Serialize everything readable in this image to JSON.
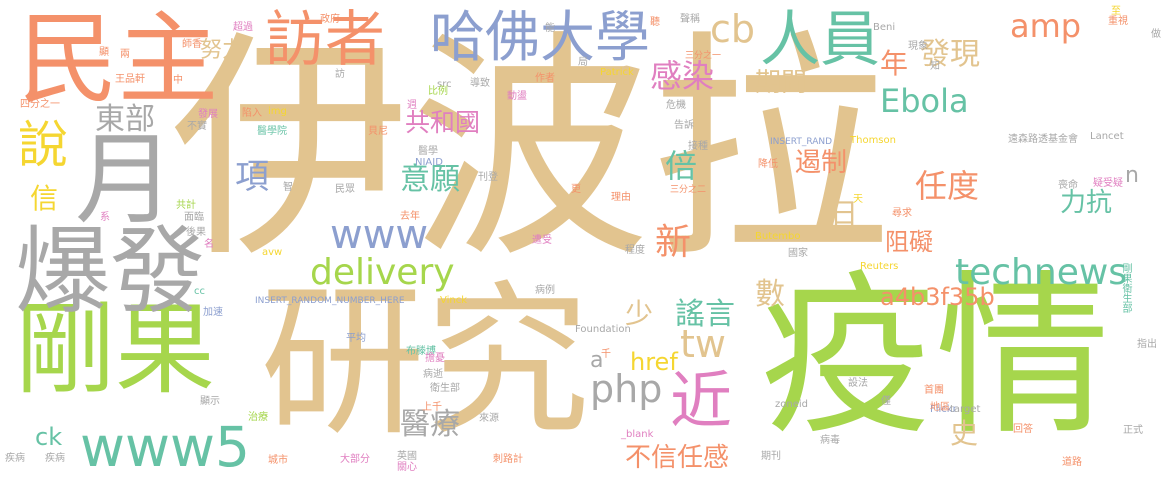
{
  "title": "",
  "colors": {
    "tan": "#dcc090",
    "pink": "#e07fc0",
    "green": "#a6d64c",
    "salmon": "#f4916a",
    "gray": "#a8a8a8",
    "blue": "#8c9fcf",
    "teal": "#66c2a5",
    "yellow": "#f5d631"
  },
  "words": [
    {
      "text": "伊波拉",
      "color": "#e2c48f"
    },
    {
      "text": "疫情",
      "color": "#a6d64c"
    },
    {
      "text": "研究",
      "color": "#e2c48f"
    },
    {
      "text": "民主",
      "color": "#f4916a"
    },
    {
      "text": "剛果",
      "color": "#a6d64c"
    },
    {
      "text": "爆發",
      "color": "#a8a8a8"
    },
    {
      "text": "月",
      "color": "#a8a8a8"
    },
    {
      "text": "訪者",
      "color": "#f4916a"
    },
    {
      "text": "哈佛大學",
      "color": "#8c9fcf"
    },
    {
      "text": "人員",
      "color": "#66c2a5"
    },
    {
      "text": "說",
      "color": "#f5d631"
    },
    {
      "text": "www5",
      "color": "#66c2a5"
    },
    {
      "text": "technews",
      "color": "#66c2a5"
    },
    {
      "text": "delivery",
      "color": "#a6d64c"
    },
    {
      "text": "www",
      "color": "#8c9fcf"
    },
    {
      "text": "近",
      "color": "#e07fc0"
    },
    {
      "text": "cb",
      "color": "#e2c48f"
    },
    {
      "text": "amp",
      "color": "#f4916a"
    },
    {
      "text": "發現",
      "color": "#e2c48f"
    },
    {
      "text": "感染",
      "color": "#e07fc0"
    },
    {
      "text": "期間",
      "color": "#e2c48f"
    },
    {
      "text": "東部",
      "color": "#a8a8a8"
    },
    {
      "text": "共和國",
      "color": "#e07fc0"
    },
    {
      "text": "意願",
      "color": "#66c2a5"
    },
    {
      "text": "Ebola",
      "color": "#66c2a5"
    },
    {
      "text": "任度",
      "color": "#f4916a"
    },
    {
      "text": "倍",
      "color": "#66c2a5"
    },
    {
      "text": "php",
      "color": "#a8a8a8"
    },
    {
      "text": "tw",
      "color": "#e2c48f"
    },
    {
      "text": "謠言",
      "color": "#66c2a5"
    },
    {
      "text": "醫療",
      "color": "#a8a8a8"
    },
    {
      "text": "不信任感",
      "color": "#f4916a"
    },
    {
      "text": "a4b3f35b",
      "color": "#f4916a"
    },
    {
      "text": "遏制",
      "color": "#f4916a"
    },
    {
      "text": "項",
      "color": "#8c9fcf"
    },
    {
      "text": "信",
      "color": "#f5d631"
    },
    {
      "text": "努力",
      "color": "#e2c48f"
    },
    {
      "text": "年",
      "color": "#f4916a"
    },
    {
      "text": "新",
      "color": "#f4916a"
    },
    {
      "text": "少",
      "color": "#e2c48f"
    },
    {
      "text": "數",
      "color": "#e2c48f"
    },
    {
      "text": "力抗",
      "color": "#66c2a5"
    },
    {
      "text": "阻礙",
      "color": "#f4916a"
    },
    {
      "text": "日",
      "color": "#e2c48f"
    },
    {
      "text": "n",
      "color": "#a8a8a8"
    },
    {
      "text": "href",
      "color": "#f5d631"
    },
    {
      "text": "史",
      "color": "#e2c48f"
    },
    {
      "text": "ck",
      "color": "#66c2a5"
    },
    {
      "text": "a",
      "color": "#a8a8a8"
    },
    {
      "text": "INSERT_RANDOM_NUMBER_HERE",
      "color": "#8c9fcf"
    },
    {
      "text": "INSERT_RAND",
      "color": "#8c9fcf"
    },
    {
      "text": "遠森路透基金會",
      "color": "#a8a8a8"
    },
    {
      "text": "Lancet",
      "color": "#a8a8a8"
    },
    {
      "text": "Thomson",
      "color": "#f5d631"
    },
    {
      "text": "Patrick",
      "color": "#f5d631"
    },
    {
      "text": "Foundation",
      "color": "#a8a8a8"
    },
    {
      "text": "Vinck",
      "color": "#f5d631"
    },
    {
      "text": "Butembo",
      "color": "#f5d631"
    },
    {
      "text": "Reuters",
      "color": "#f5d631"
    },
    {
      "text": "Flickr",
      "color": "#8c9fcf"
    },
    {
      "text": "zoneid",
      "color": "#a8a8a8"
    },
    {
      "text": "target",
      "color": "#a8a8a8"
    },
    {
      "text": "_blank",
      "color": "#e07fc0"
    },
    {
      "text": "NIAID",
      "color": "#8c9fcf"
    },
    {
      "text": "Beni",
      "color": "#a8a8a8"
    },
    {
      "text": "src",
      "color": "#a8a8a8"
    },
    {
      "text": "img",
      "color": "#f5d631"
    },
    {
      "text": "avw",
      "color": "#f5d631"
    },
    {
      "text": "cc",
      "color": "#66c2a5"
    },
    {
      "text": "王品軒",
      "color": "#f4916a"
    },
    {
      "text": "四分之一",
      "color": "#f4916a"
    },
    {
      "text": "三分之二",
      "color": "#f4916a"
    },
    {
      "text": "三分之一",
      "color": "#f4916a"
    },
    {
      "text": "醫學院",
      "color": "#66c2a5"
    },
    {
      "text": "醫學",
      "color": "#a8a8a8"
    },
    {
      "text": "病例",
      "color": "#a8a8a8"
    },
    {
      "text": "病逝",
      "color": "#a8a8a8"
    },
    {
      "text": "衛生部",
      "color": "#a8a8a8"
    },
    {
      "text": "布滕博",
      "color": "#66c2a5"
    },
    {
      "text": "剛果衛生部",
      "color": "#66c2a5"
    },
    {
      "text": "國家",
      "color": "#a8a8a8"
    },
    {
      "text": "指出",
      "color": "#a8a8a8"
    },
    {
      "text": "正式",
      "color": "#a8a8a8"
    },
    {
      "text": "道路",
      "color": "#f4916a"
    },
    {
      "text": "回答",
      "color": "#f4916a"
    },
    {
      "text": "地區",
      "color": "#f4916a"
    },
    {
      "text": "首團",
      "color": "#f4916a"
    },
    {
      "text": "病毒",
      "color": "#a8a8a8"
    },
    {
      "text": "設法",
      "color": "#a8a8a8"
    },
    {
      "text": "疾病",
      "color": "#a8a8a8"
    },
    {
      "text": "民眾",
      "color": "#a8a8a8"
    },
    {
      "text": "超過",
      "color": "#e07fc0"
    },
    {
      "text": "政府",
      "color": "#f4916a"
    },
    {
      "text": "發展",
      "color": "#e07fc0"
    },
    {
      "text": "疾病",
      "color": "#a8a8a8"
    },
    {
      "text": "城市",
      "color": "#f4916a"
    },
    {
      "text": "大部分",
      "color": "#e07fc0"
    },
    {
      "text": "英國",
      "color": "#a8a8a8"
    },
    {
      "text": "關心",
      "color": "#e07fc0"
    },
    {
      "text": "刺路計",
      "color": "#f4916a"
    },
    {
      "text": "期刊",
      "color": "#a8a8a8"
    },
    {
      "text": "遭受",
      "color": "#e07fc0"
    },
    {
      "text": "程度",
      "color": "#a8a8a8"
    },
    {
      "text": "理由",
      "color": "#f4916a"
    },
    {
      "text": "降低",
      "color": "#f4916a"
    },
    {
      "text": "尋求",
      "color": "#f4916a"
    },
    {
      "text": "喪命",
      "color": "#a8a8a8"
    },
    {
      "text": "疑受",
      "color": "#e07fc0"
    },
    {
      "text": "刊登",
      "color": "#a8a8a8"
    },
    {
      "text": "去年",
      "color": "#f4916a"
    },
    {
      "text": "陷入",
      "color": "#f4916a"
    },
    {
      "text": "貝尼",
      "color": "#f4916a"
    },
    {
      "text": "比例",
      "color": "#a6d64c"
    },
    {
      "text": "作者",
      "color": "#f4916a"
    },
    {
      "text": "動盪",
      "color": "#e07fc0"
    },
    {
      "text": "導致",
      "color": "#a8a8a8"
    },
    {
      "text": "危機",
      "color": "#a8a8a8"
    },
    {
      "text": "告訴",
      "color": "#a8a8a8"
    },
    {
      "text": "接種",
      "color": "#a8a8a8"
    },
    {
      "text": "不實",
      "color": "#a8a8a8"
    },
    {
      "text": "共計",
      "color": "#a6d64c"
    },
    {
      "text": "後果",
      "color": "#a8a8a8"
    },
    {
      "text": "面臨",
      "color": "#a8a8a8"
    },
    {
      "text": "加速",
      "color": "#8c9fcf"
    },
    {
      "text": "平均",
      "color": "#8c9fcf"
    },
    {
      "text": "顯示",
      "color": "#a8a8a8"
    },
    {
      "text": "治療",
      "color": "#a6d64c"
    },
    {
      "text": "來源",
      "color": "#a8a8a8"
    },
    {
      "text": "上千",
      "color": "#f4916a"
    },
    {
      "text": "擔憂",
      "color": "#e07fc0"
    },
    {
      "text": "聲稱",
      "color": "#a8a8a8"
    },
    {
      "text": "現象",
      "color": "#a8a8a8"
    },
    {
      "text": "知",
      "color": "#a8a8a8"
    },
    {
      "text": "做",
      "color": "#a8a8a8"
    },
    {
      "text": "重視",
      "color": "#f4916a"
    },
    {
      "text": "至",
      "color": "#f5d631"
    },
    {
      "text": "天",
      "color": "#f5d631"
    },
    {
      "text": "僅",
      "color": "#a8a8a8"
    },
    {
      "text": "更",
      "color": "#f4916a"
    },
    {
      "text": "千",
      "color": "#f4916a"
    },
    {
      "text": "名",
      "color": "#e07fc0"
    },
    {
      "text": "系",
      "color": "#e07fc0"
    },
    {
      "text": "智",
      "color": "#a8a8a8"
    },
    {
      "text": "訪",
      "color": "#a8a8a8"
    },
    {
      "text": "週",
      "color": "#e07fc0"
    },
    {
      "text": "局",
      "color": "#a8a8a8"
    },
    {
      "text": "能",
      "color": "#a8a8a8"
    },
    {
      "text": "師香",
      "color": "#f4916a"
    },
    {
      "text": "顯",
      "color": "#f4916a"
    },
    {
      "text": "中",
      "color": "#f4916a"
    },
    {
      "text": "兩",
      "color": "#f4916a"
    },
    {
      "text": "聽",
      "color": "#f4916a"
    },
    {
      "text": "疑",
      "color": "#e07fc0"
    }
  ]
}
